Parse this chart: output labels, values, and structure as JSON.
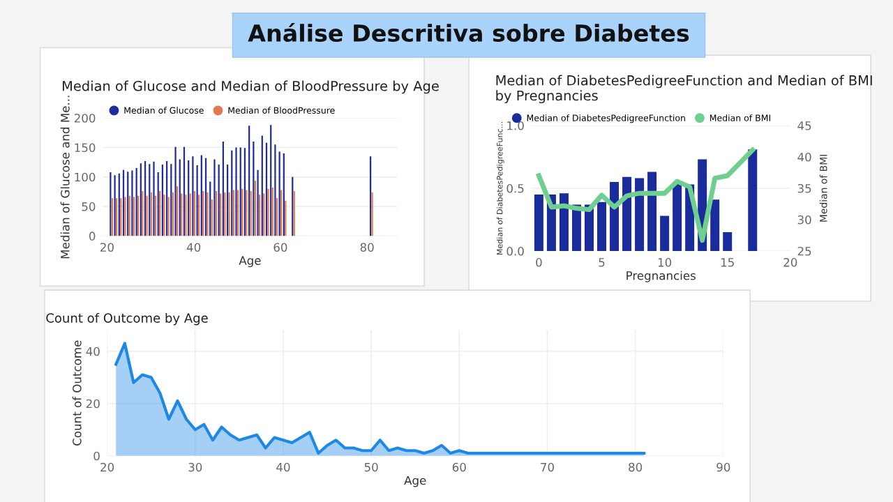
{
  "chart_data": [
    {
      "type": "other",
      "title": "Análise Descritiva sobre Diabetes"
    },
    {
      "type": "bar",
      "title": "Median of Glucose and Median of BloodPressure by Age",
      "xlabel": "Age",
      "ylabel": "Median of Glucose and Me...",
      "x": [
        21,
        22,
        23,
        24,
        25,
        26,
        27,
        28,
        29,
        30,
        31,
        32,
        33,
        34,
        35,
        36,
        37,
        38,
        39,
        40,
        41,
        42,
        43,
        44,
        45,
        46,
        47,
        48,
        49,
        50,
        51,
        52,
        53,
        54,
        55,
        56,
        57,
        58,
        59,
        60,
        61,
        63,
        81
      ],
      "series": [
        {
          "name": "Median of Glucose",
          "color": "#202d9a",
          "values": [
            108,
            103,
            106,
            112,
            109,
            111,
            115,
            123,
            127,
            122,
            126,
            108,
            121,
            127,
            122,
            151,
            130,
            151,
            128,
            135,
            120,
            137,
            132,
            92,
            130,
            121,
            160,
            121,
            145,
            150,
            150,
            149,
            187,
            160,
            112,
            170,
            158,
            188,
            155,
            143,
            140,
            100,
            135
          ]
        },
        {
          "name": "Median of BloodPressure",
          "color": "#e07a4f",
          "values": [
            64,
            64,
            64,
            66,
            68,
            66,
            68,
            76,
            68,
            74,
            68,
            76,
            70,
            66,
            74,
            84,
            72,
            70,
            72,
            76,
            70,
            76,
            74,
            62,
            76,
            72,
            74,
            74,
            78,
            78,
            80,
            78,
            76,
            94,
            70,
            72,
            80,
            82,
            64,
            78,
            60,
            76,
            74
          ]
        }
      ],
      "xlim": [
        19,
        87
      ],
      "xticks": [
        20,
        40,
        60,
        80
      ],
      "ylim": [
        0,
        200
      ],
      "yticks": [
        0,
        50,
        100,
        150,
        200
      ],
      "grid": "y",
      "legend": "top left"
    },
    {
      "type": "bar",
      "title": "Median of DiabetesPedigreeFunction and Median of BMI by Pregnancies",
      "xlabel": "Pregnancies",
      "ylabel": "Median of DiabetesPedigreeFunc...",
      "y2label": "Median of BMI",
      "x": [
        0,
        1,
        2,
        3,
        4,
        5,
        6,
        7,
        8,
        9,
        10,
        11,
        12,
        13,
        14,
        15,
        17
      ],
      "series": [
        {
          "name": "Median of DiabetesPedigreeFunction",
          "color": "#1a2b9b",
          "values": [
            0.45,
            0.45,
            0.46,
            0.37,
            0.37,
            0.39,
            0.55,
            0.59,
            0.58,
            0.63,
            0.28,
            0.55,
            0.53,
            0.73,
            0.41,
            0.15,
            0.81
          ]
        },
        {
          "name": "Median of BMI",
          "type": "line",
          "axis": "y2",
          "color": "#6fcf8f",
          "values": [
            37.0,
            32.0,
            32.2,
            31.8,
            31.6,
            33.9,
            32.0,
            33.8,
            34.2,
            34.2,
            34.2,
            36.1,
            35.2,
            26.7,
            36.6,
            37.0,
            41.1
          ]
        }
      ],
      "xlim": [
        -0.6,
        20
      ],
      "xticks": [
        0,
        5,
        10,
        15,
        20
      ],
      "ylim": [
        0,
        1
      ],
      "yticks": [
        {
          "value": 0,
          "label": "0.0"
        },
        {
          "value": 0.5,
          "label": "0.5"
        },
        {
          "value": 1,
          "label": "1.0"
        }
      ],
      "y2lim": [
        25,
        45
      ],
      "y2ticks": [
        25,
        30,
        35,
        40,
        45
      ],
      "grid": "y",
      "legend": "top left"
    },
    {
      "type": "area",
      "title": "Count of Outcome by Age",
      "xlabel": "Age",
      "ylabel": "Count of Outcome",
      "x": [
        21,
        22,
        23,
        24,
        25,
        26,
        27,
        28,
        29,
        30,
        31,
        32,
        33,
        34,
        35,
        36,
        37,
        38,
        39,
        40,
        41,
        42,
        43,
        44,
        45,
        46,
        47,
        48,
        49,
        50,
        51,
        52,
        53,
        54,
        55,
        56,
        57,
        58,
        59,
        60,
        61,
        81
      ],
      "series": [
        {
          "color": "#1e88e5",
          "values": [
            35,
            43,
            28,
            31,
            30,
            24,
            14,
            21,
            14,
            10,
            12,
            6,
            11,
            8,
            6,
            7,
            8,
            3,
            7,
            6,
            5,
            7,
            9,
            1,
            4,
            6,
            3,
            3,
            2,
            2,
            6,
            2,
            3,
            2,
            2,
            1,
            2,
            4,
            1,
            2,
            1,
            1
          ]
        }
      ],
      "xlim": [
        20,
        90
      ],
      "xticks": [
        20,
        30,
        40,
        50,
        60,
        70,
        80,
        90
      ],
      "ylim": [
        0,
        48
      ],
      "yticks": [
        0,
        20,
        40
      ],
      "grid": true
    }
  ]
}
